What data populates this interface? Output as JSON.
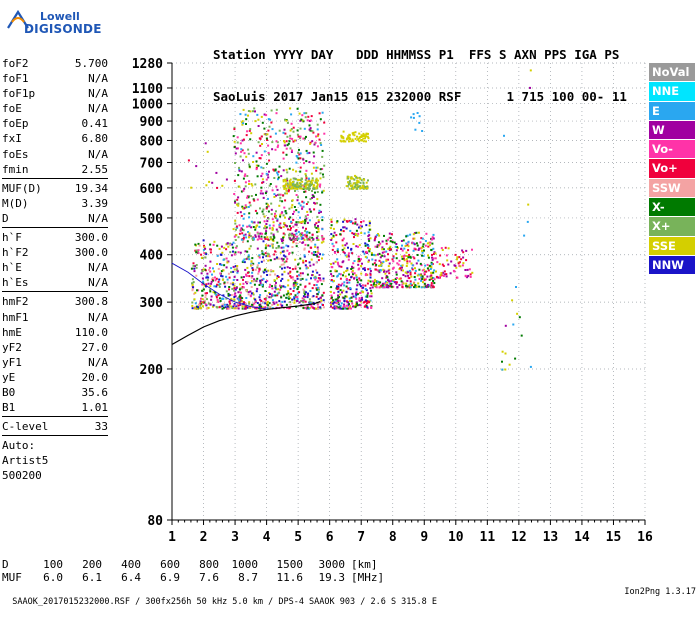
{
  "brand": {
    "line1": "Lowell",
    "line2": "DIGISONDE"
  },
  "header": {
    "line1": "Station YYYY DAY   DDD HHMMSS P1  FFS S AXN PPS IGA PS",
    "line2": "SaoLuis 2017 Jan15 015 232000 RSF      1 715 100 00- 11"
  },
  "params_group1": [
    {
      "label": "foF2",
      "value": "5.700"
    },
    {
      "label": "foF1",
      "value": "N/A"
    },
    {
      "label": "foF1p",
      "value": "N/A"
    },
    {
      "label": "foE",
      "value": "N/A"
    },
    {
      "label": "foEp",
      "value": "0.41"
    },
    {
      "label": "fxI",
      "value": "6.80"
    },
    {
      "label": "foEs",
      "value": "N/A"
    },
    {
      "label": "fmin",
      "value": "2.55"
    }
  ],
  "params_group2": [
    {
      "label": "MUF(D)",
      "value": "19.34"
    },
    {
      "label": "M(D)",
      "value": "3.39"
    },
    {
      "label": "D",
      "value": "N/A"
    }
  ],
  "params_group3": [
    {
      "label": "h`F",
      "value": "300.0"
    },
    {
      "label": "h`F2",
      "value": "300.0"
    },
    {
      "label": "h`E",
      "value": "N/A"
    },
    {
      "label": "h`Es",
      "value": "N/A"
    }
  ],
  "params_group4": [
    {
      "label": "hmF2",
      "value": "300.8"
    },
    {
      "label": "hmF1",
      "value": "N/A"
    },
    {
      "label": "hmE",
      "value": "110.0"
    },
    {
      "label": "yF2",
      "value": "27.0"
    },
    {
      "label": "yF1",
      "value": "N/A"
    },
    {
      "label": "yE",
      "value": "20.0"
    },
    {
      "label": "B0",
      "value": "35.6"
    },
    {
      "label": "B1",
      "value": "1.01"
    }
  ],
  "params_group5": [
    {
      "label": "C-level",
      "value": "33"
    }
  ],
  "auto_lines": [
    "Auto:",
    "Artist5",
    "500200"
  ],
  "legend": [
    {
      "label": "NoVal",
      "color": "#9a9a9a"
    },
    {
      "label": "NNE",
      "color": "#00e5ff"
    },
    {
      "label": "E",
      "color": "#2aa7f0"
    },
    {
      "label": "W",
      "color": "#a000a0"
    },
    {
      "label": "Vo-",
      "color": "#ff33a8"
    },
    {
      "label": "Vo+",
      "color": "#f0003c"
    },
    {
      "label": "SSW",
      "color": "#f4a3a3"
    },
    {
      "label": "X-",
      "color": "#007a00"
    },
    {
      "label": "X+",
      "color": "#78b35a"
    },
    {
      "label": "SSE",
      "color": "#d4cf00"
    },
    {
      "label": "NNW",
      "color": "#1a14c8"
    }
  ],
  "d_table": {
    "d_label": "D",
    "muf_label": "MUF",
    "d_values": [
      "100",
      "200",
      "400",
      "600",
      "800",
      "1000",
      "1500",
      "3000"
    ],
    "d_unit": "[km]",
    "muf_values": [
      "6.0",
      "6.1",
      "6.4",
      "6.9",
      "7.6",
      "8.7",
      "11.6",
      "19.3"
    ],
    "muf_unit": "[MHz]"
  },
  "footer": {
    "left": "SAAOK_2017015232000.RSF / 300fx256h 50 kHz 5.0 km / DPS-4 SAAOK 903 / 2.6 S 315.8 E",
    "right": "Ion2Png 1.3.17"
  },
  "chart_data": {
    "type": "scatter",
    "title": "",
    "xlabel": "",
    "ylabel": "",
    "xlim": [
      1,
      16
    ],
    "ylim": [
      80,
      1280
    ],
    "y_scale": "log",
    "x_ticks": [
      "1",
      "2",
      "3",
      "4",
      "5",
      "6",
      "7",
      "8",
      "9",
      "10",
      "11",
      "12",
      "13",
      "14",
      "15",
      "16"
    ],
    "y_ticks": [
      "80",
      "200",
      "300",
      "400",
      "500",
      "600",
      "700",
      "800",
      "900",
      "1000",
      "1100",
      "1280"
    ],
    "grid": true,
    "legend_placement": "right",
    "profile_curve": {
      "x": [
        1.0,
        1.5,
        2.0,
        2.5,
        3.0,
        3.5,
        4.0,
        4.5,
        5.0,
        5.5,
        5.7
      ],
      "y": [
        232,
        245,
        258,
        268,
        276,
        282,
        287,
        290,
        293,
        297,
        301
      ]
    },
    "blue_curve": {
      "x": [
        1.0,
        1.5,
        2.0,
        2.5,
        3.0,
        3.5,
        4.0
      ],
      "y": [
        380,
        360,
        335,
        315,
        300,
        292,
        288
      ]
    },
    "clusters": [
      {
        "x": [
          1.6,
          5.8
        ],
        "y": [
          290,
          440
        ],
        "n": 900,
        "colors": [
          "#a000a0",
          "#ff33a8",
          "#d4cf00",
          "#007a00",
          "#2aa7f0",
          "#f0003c",
          "#78b35a",
          "#1a14c8",
          "#f4a3a3"
        ]
      },
      {
        "x": [
          2.9,
          5.8
        ],
        "y": [
          440,
          980
        ],
        "n": 700,
        "colors": [
          "#a000a0",
          "#d4cf00",
          "#ff33a8",
          "#007a00",
          "#f0003c",
          "#2aa7f0",
          "#78b35a"
        ]
      },
      {
        "x": [
          4.5,
          5.6
        ],
        "y": [
          600,
          640
        ],
        "n": 150,
        "colors": [
          "#d4cf00",
          "#78b35a"
        ]
      },
      {
        "x": [
          6.0,
          7.3
        ],
        "y": [
          290,
          500
        ],
        "n": 380,
        "colors": [
          "#a000a0",
          "#ff33a8",
          "#d4cf00",
          "#f0003c",
          "#007a00",
          "#2aa7f0",
          "#1a14c8"
        ]
      },
      {
        "x": [
          6.5,
          7.2
        ],
        "y": [
          600,
          650
        ],
        "n": 90,
        "colors": [
          "#d4cf00",
          "#78b35a"
        ]
      },
      {
        "x": [
          6.3,
          7.2
        ],
        "y": [
          800,
          850
        ],
        "n": 60,
        "colors": [
          "#d4cf00"
        ]
      },
      {
        "x": [
          7.3,
          9.3
        ],
        "y": [
          330,
          460
        ],
        "n": 420,
        "colors": [
          "#ff33a8",
          "#a000a0",
          "#f0003c",
          "#d4cf00",
          "#2aa7f0",
          "#007a00"
        ]
      },
      {
        "x": [
          9.3,
          10.5
        ],
        "y": [
          350,
          420
        ],
        "n": 70,
        "colors": [
          "#ff33a8",
          "#a000a0",
          "#f0003c",
          "#d4cf00"
        ]
      },
      {
        "x": [
          11.4,
          12.6
        ],
        "y": [
          200,
          1250
        ],
        "n": 22,
        "colors": [
          "#007a00",
          "#2aa7f0",
          "#a000a0",
          "#d4cf00"
        ]
      },
      {
        "x": [
          1.5,
          3.0
        ],
        "y": [
          600,
          800
        ],
        "n": 12,
        "colors": [
          "#a000a0",
          "#d4cf00",
          "#f0003c"
        ]
      },
      {
        "x": [
          8.5,
          9.0
        ],
        "y": [
          840,
          1000
        ],
        "n": 8,
        "colors": [
          "#2aa7f0"
        ]
      }
    ]
  }
}
